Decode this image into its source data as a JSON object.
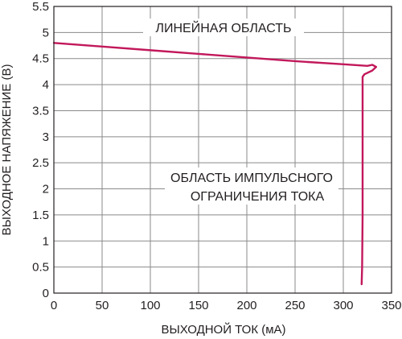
{
  "chart_data": {
    "type": "line",
    "xlabel": "ВЫХОДНОЙ ТОК (мА)",
    "ylabel": "ВЫХОДНОЕ НАПЯЖЕНИЕ (В)",
    "xlim": [
      0,
      350
    ],
    "ylim": [
      0,
      5.5
    ],
    "x_ticks": [
      0,
      50,
      100,
      150,
      200,
      250,
      300,
      350
    ],
    "y_ticks": [
      0,
      0.5,
      1,
      1.5,
      2,
      2.5,
      3,
      3.5,
      4,
      4.5,
      5,
      5.5
    ],
    "x_tick_labels": [
      "0",
      "50",
      "100",
      "150",
      "200",
      "250",
      "300",
      "350"
    ],
    "y_tick_labels": [
      "0",
      "0.5",
      "1",
      "1.5",
      "2",
      "2.5",
      "3",
      "3.5",
      "4",
      "4.5",
      "5",
      "5.5"
    ],
    "grid": true,
    "line_color": "#c2185b",
    "series": [
      {
        "x": [
          0,
          50,
          100,
          150,
          200,
          250,
          300,
          325,
          330,
          334,
          330,
          322,
          320,
          320,
          320,
          319.5,
          319
        ],
        "y": [
          4.8,
          4.73,
          4.66,
          4.59,
          4.52,
          4.45,
          4.39,
          4.36,
          4.38,
          4.34,
          4.27,
          4.2,
          4.15,
          3.0,
          1.5,
          0.5,
          0.17
        ]
      }
    ],
    "annotations": [
      {
        "text": "ЛИНЕЙНАЯ ОБЛАСТЬ"
      },
      {
        "text": "ОБЛАСТЬ ИМПУЛЬСНОГО"
      },
      {
        "text": "ОГРАНИЧЕНИЯ ТОКА"
      }
    ]
  }
}
